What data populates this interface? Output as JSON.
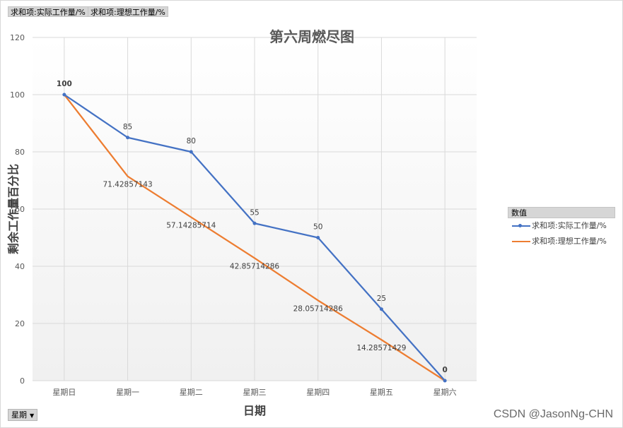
{
  "pivot_fields": {
    "value_field_1": "求和项:实际工作量/%",
    "value_field_2": "求和项:理想工作量/%",
    "axis_field": "星期"
  },
  "legend": {
    "header": "数值",
    "items": [
      "求和项:实际工作量/%",
      "求和项:理想工作量/%"
    ]
  },
  "watermark": "CSDN @JasonNg-CHN",
  "colors": {
    "actual": "#4472c4",
    "ideal": "#ed7d31",
    "grid": "#d9d9d9"
  },
  "chart_data": {
    "type": "line",
    "title": "第六周燃尽图",
    "xlabel": "日期",
    "ylabel": "剩余工作量百分比",
    "categories": [
      "星期日",
      "星期一",
      "星期二",
      "星期三",
      "星期四",
      "星期五",
      "星期六"
    ],
    "ylim": [
      0,
      120
    ],
    "yticks": [
      0,
      20,
      40,
      60,
      80,
      100,
      120
    ],
    "grid": true,
    "legend_position": "right",
    "series": [
      {
        "name": "求和项:实际工作量/%",
        "values": [
          100,
          85,
          80,
          55,
          50,
          25,
          0
        ],
        "labels": [
          "100",
          "85",
          "80",
          "55",
          "50",
          "25",
          "0"
        ]
      },
      {
        "name": "求和项:理想工作量/%",
        "values": [
          100,
          71.42857143,
          57.14285714,
          42.85714286,
          28.05714286,
          14.28571429,
          0
        ],
        "labels": [
          "",
          "71.42857143",
          "57.14285714",
          "42.85714286",
          "28.05714286",
          "14.28571429",
          ""
        ]
      }
    ]
  }
}
